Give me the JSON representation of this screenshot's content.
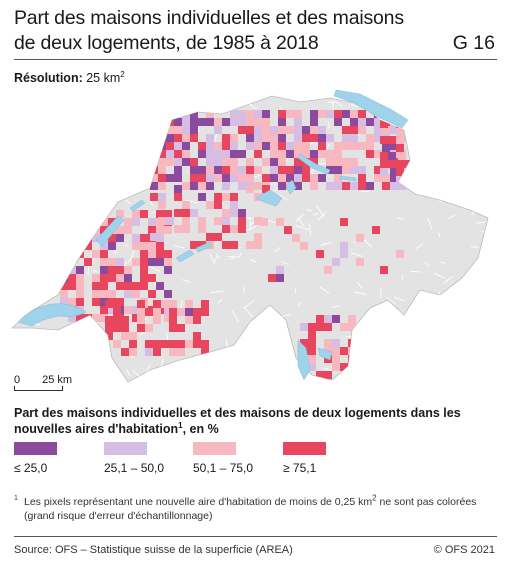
{
  "header": {
    "title": "Part des maisons individuelles et des maisons de deux logements, de 1985 à 2018",
    "code": "G 16"
  },
  "resolution": {
    "label": "Résolution:",
    "value": "25 km",
    "unit_sup": "2"
  },
  "scale": {
    "zero": "0",
    "distance": "25 km"
  },
  "legend": {
    "title_main": "Part des maisons individuelles et des maisons de deux logements dans les nouvelles aires d'habitation",
    "title_sup": "1",
    "title_end": ", en %",
    "items": [
      {
        "label": "≤ 25,0",
        "color": "#8c4a9e"
      },
      {
        "label": "25,1 – 50,0",
        "color": "#d6bde3"
      },
      {
        "label": "50,1 – 75,0",
        "color": "#f7b8c0"
      },
      {
        "label": "≥ 75,1",
        "color": "#e8465f"
      }
    ]
  },
  "footnote": {
    "number": "1",
    "text_a": "Les pixels représentant une nouvelle aire d'habitation de moins de 0,25 km",
    "text_sup": "2",
    "text_b": " ne sont pas colorées (grand risque d'erreur d'échantillonnage)"
  },
  "source": "Source: OFS – Statistique suisse de la superficie (AREA)",
  "copyright": "© OFS 2021",
  "map_colors": {
    "land": "#e3e3e3",
    "lake": "#9fd3ec",
    "relief": "#ffffff"
  }
}
